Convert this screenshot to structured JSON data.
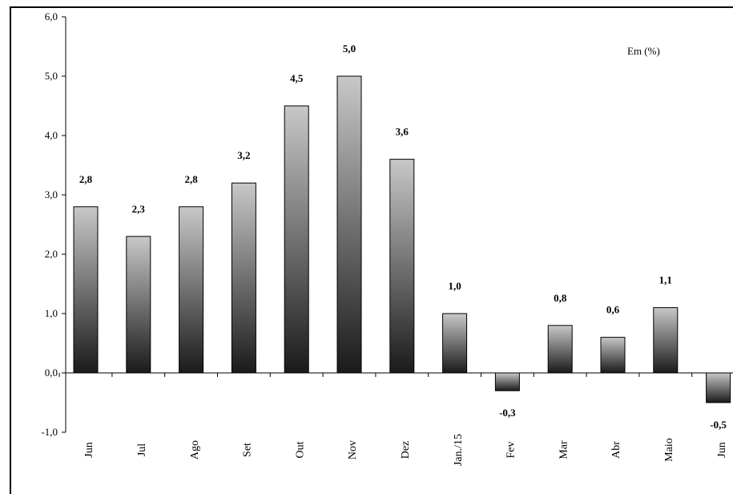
{
  "chart_data": {
    "type": "bar",
    "unit_note": "Em (%)",
    "categories": [
      "Jun",
      "Jul",
      "Ago",
      "Set",
      "Out",
      "Nov",
      "Dez",
      "Jan./15",
      "Fev",
      "Mar",
      "Abr",
      "Maio",
      "Jun"
    ],
    "values": [
      2.8,
      2.3,
      2.8,
      3.2,
      4.5,
      5.0,
      3.6,
      1.0,
      -0.3,
      0.8,
      0.6,
      1.1,
      -0.5
    ],
    "data_labels": [
      "2,8",
      "2,3",
      "2,8",
      "3,2",
      "4,5",
      "5,0",
      "3,6",
      "1,0",
      "-0,3",
      "0,8",
      "0,6",
      "1,1",
      "-0,5"
    ],
    "ylim": [
      -1.0,
      6.0
    ],
    "yticks": [
      -1.0,
      0.0,
      1.0,
      2.0,
      3.0,
      4.0,
      5.0,
      6.0
    ],
    "ytick_labels": [
      "-1,0",
      "0,0",
      "1,0",
      "2,0",
      "3,0",
      "4,0",
      "5,0",
      "6,0"
    ],
    "title": "",
    "xlabel": "",
    "ylabel": "",
    "grid": false,
    "legend": "none",
    "colors": {
      "bar_top": "#c8c8c8",
      "bar_bottom": "#1a1a1a",
      "stroke": "#000000"
    }
  }
}
